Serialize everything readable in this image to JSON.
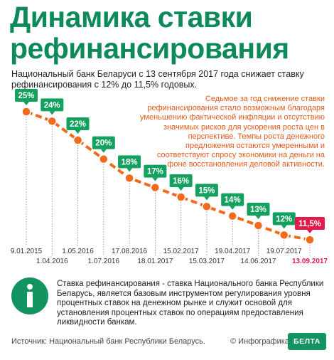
{
  "header": {
    "title_line1": "Динамика ставки",
    "title_line2": "рефинансирования",
    "subtitle": "Национальный банк Беларуси с 13 сентября 2017 года снижает ставку рефинансирования с 12% до 11,5% годовых."
  },
  "note": "Седьмое за год снижение ставки рефинансирования стало возможным благодаря уменьшению фактической инфляции и отсутствию значимых рисков для ускорения роста цен в перспективе. Темпы роста денежного предложения остаются умеренными и соответствуют спросу экономики на деньги на фоне восстановления деловой активности.",
  "chart_data": {
    "type": "line",
    "x": [
      "9.01.2015",
      "1.04.2016",
      "1.05.2016",
      "1.07.2016",
      "17.08.2016",
      "18.01.2017",
      "15.02.2017",
      "15.03.2017",
      "19.04.2017",
      "14.06.2017",
      "19.07.2017",
      "13.09.2017"
    ],
    "values": [
      25,
      24,
      22,
      20,
      18,
      17,
      16,
      15,
      14,
      13,
      12,
      11.5
    ],
    "value_labels": [
      "25%",
      "24%",
      "22%",
      "20%",
      "18%",
      "17%",
      "16%",
      "15%",
      "14%",
      "13%",
      "12%",
      "11,5%"
    ],
    "colors": {
      "line": "#f26b1d",
      "label": "#14a05f",
      "highlight": "#e31b4a",
      "date_highlight": "#e31b4a"
    }
  },
  "info": {
    "icon": "info-icon",
    "text": "Ставка рефинансирования - ставка Национального банка Республики Беларусь, является базовым инструментом регулирования уровня процентных ставок на денежном рынке и служит основой для установления процентных ставок по операциям предоставления ликвидности банкам."
  },
  "footer": {
    "source": "Источник: Национальный банк Республики Беларусь.",
    "credit": "© Инфографика",
    "logo_text": "БЕЛТА"
  }
}
